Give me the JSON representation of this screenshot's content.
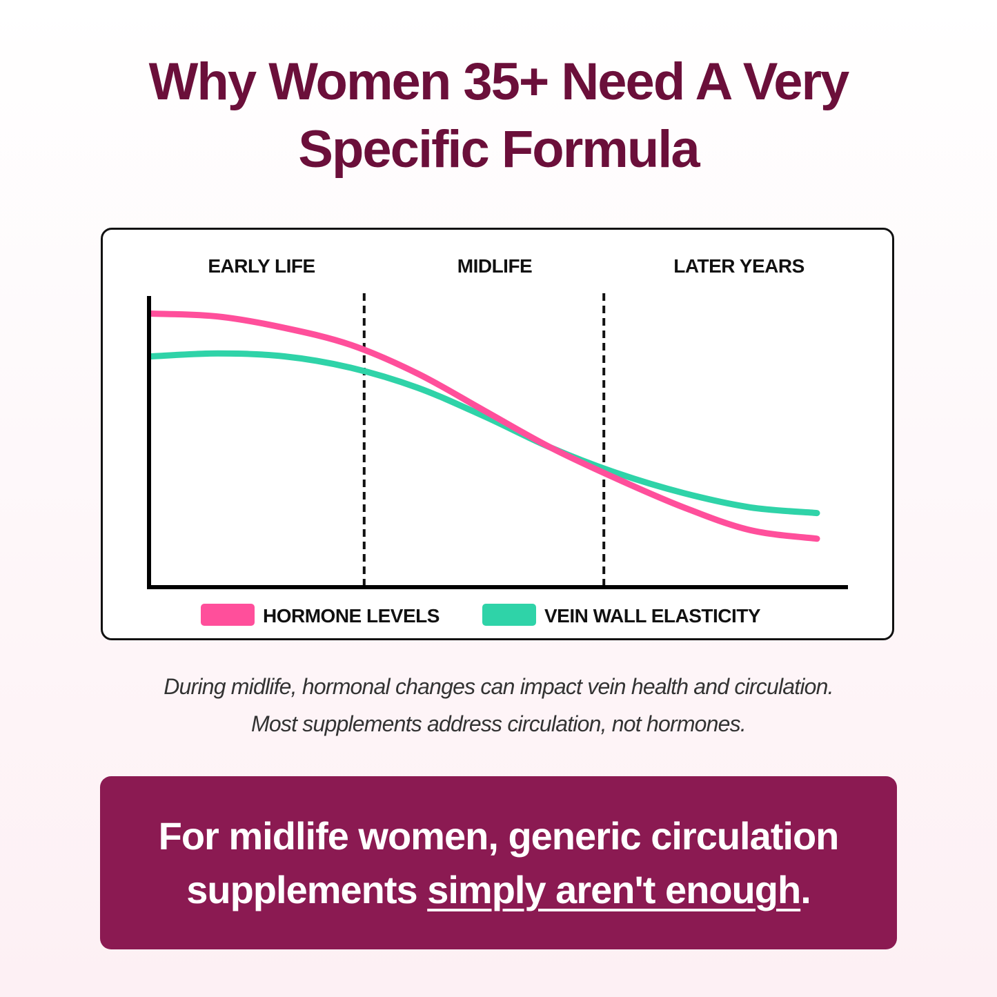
{
  "title": {
    "line1": "Why Women 35+ Need A Very",
    "line2": "Specific Formula"
  },
  "chart_data": {
    "type": "line",
    "title": "",
    "xlabel": "",
    "ylabel": "",
    "phases": [
      "EARLY LIFE",
      "MIDLIFE",
      "LATER YEARS"
    ],
    "x": [
      0,
      10,
      20,
      30,
      40,
      50,
      60,
      70,
      80,
      90,
      100
    ],
    "xlim": [
      0,
      100
    ],
    "ylim": [
      0,
      100
    ],
    "phase_boundaries": [
      32,
      68
    ],
    "series": [
      {
        "name": "HORMONE LEVELS",
        "color": "#ff4f9b",
        "values": [
          96,
          95,
          91,
          85,
          75,
          62,
          49,
          38,
          28,
          20,
          17
        ]
      },
      {
        "name": "VEIN WALL ELASTICITY",
        "color": "#2fd3a8",
        "values": [
          81,
          82,
          81,
          77,
          70,
          60,
          49,
          40,
          33,
          28,
          26
        ]
      }
    ],
    "grid": false,
    "legend": "bottom"
  },
  "caption": {
    "line1": "During midlife, hormonal changes can impact vein health and circulation.",
    "line2": "Most supplements address circulation, not hormones."
  },
  "banner": {
    "line1": "For midlife women, generic circulation",
    "line2_prefix": "supplements ",
    "line2_emphasis": "simply aren't enough",
    "line2_suffix": "."
  },
  "colors": {
    "title": "#6b0f3a",
    "banner_bg": "#8b1a52",
    "hormone": "#ff4f9b",
    "vein": "#2fd3a8"
  }
}
